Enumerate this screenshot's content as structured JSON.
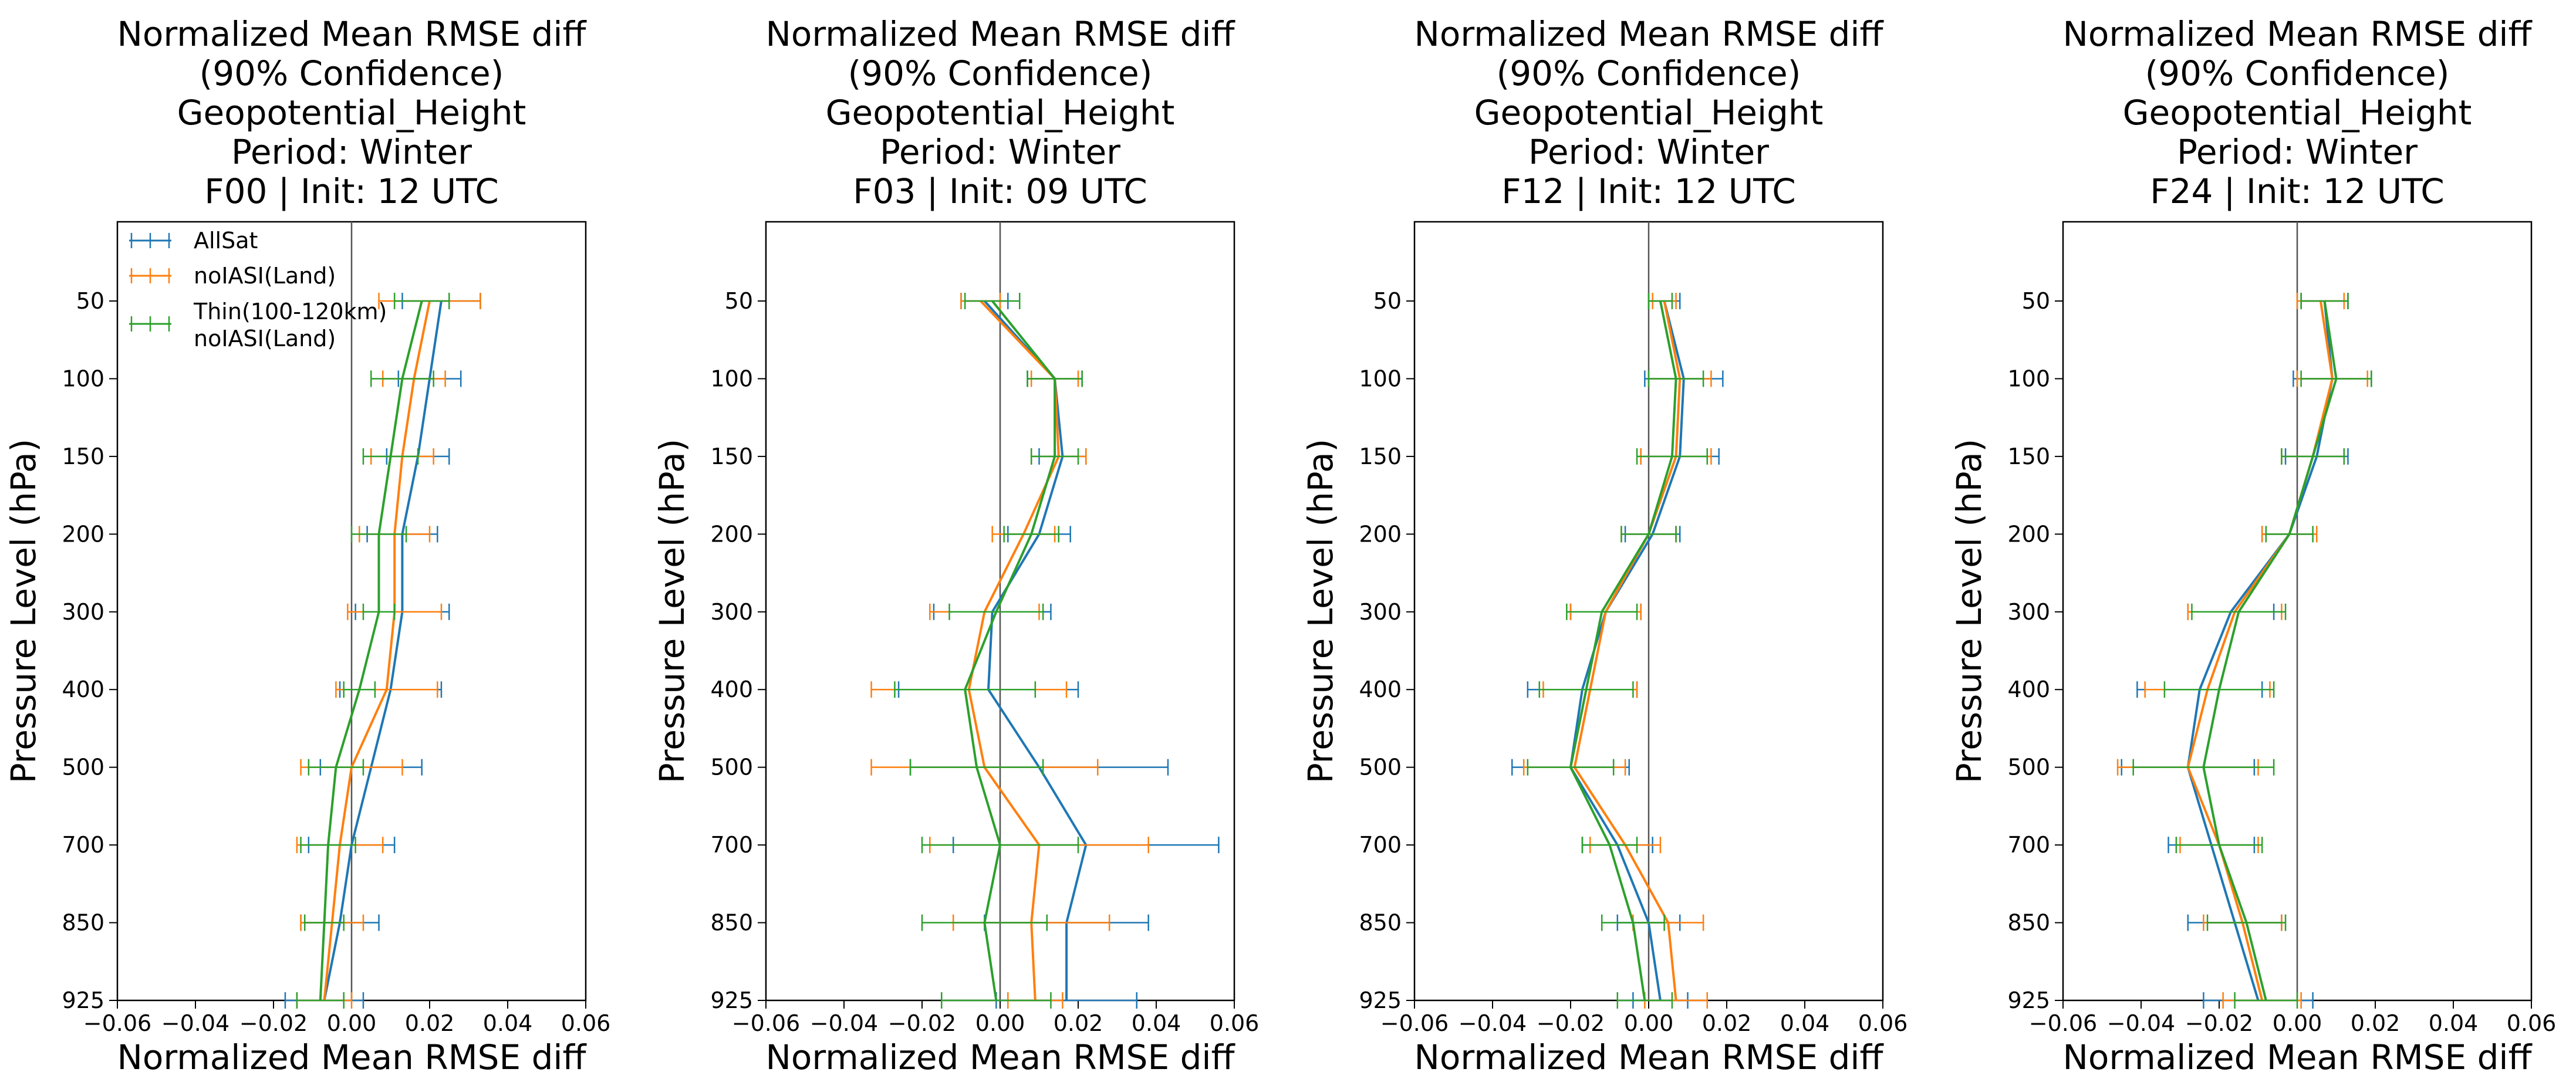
{
  "figure": {
    "background": "#ffffff"
  },
  "series_style": [
    {
      "name": "AllSat",
      "color": "#1f77b4"
    },
    {
      "name": "noIASI(Land)",
      "color": "#ff7f0e"
    },
    {
      "name": "Thin(100-120km)\nnoIASI(Land)",
      "color": "#2ca02c"
    }
  ],
  "chart_data": [
    {
      "type": "line",
      "title": [
        "Normalized Mean RMSE diff",
        "(90% Confidence)",
        "Geopotential_Height",
        "Period: Winter",
        "F00 | Init: 12 UTC"
      ],
      "xlabel": "Normalized Mean RMSE diff",
      "ylabel": "Pressure Level (hPa)",
      "xlim": [
        -0.06,
        0.06
      ],
      "xticks": [
        "−0.06",
        "−0.04",
        "−0.02",
        "0.00",
        "0.02",
        "0.04",
        "0.06"
      ],
      "xtick_values": [
        -0.06,
        -0.04,
        -0.02,
        0.0,
        0.02,
        0.04,
        0.06
      ],
      "y": [
        50,
        100,
        150,
        200,
        300,
        400,
        500,
        700,
        850,
        925
      ],
      "yticks": [
        "50",
        "100",
        "150",
        "200",
        "300",
        "400",
        "500",
        "700",
        "850",
        "925"
      ],
      "legend": "upper-left",
      "series": [
        {
          "name": "AllSat",
          "values": [
            0.023,
            0.02,
            0.017,
            0.013,
            0.013,
            0.01,
            0.005,
            0.0,
            -0.003,
            -0.007
          ],
          "err": [
            0.01,
            0.008,
            0.008,
            0.009,
            0.012,
            0.013,
            0.013,
            0.011,
            0.01,
            0.01
          ]
        },
        {
          "name": "noIASI(Land)",
          "values": [
            0.02,
            0.016,
            0.013,
            0.011,
            0.011,
            0.009,
            0.0,
            -0.003,
            -0.005,
            -0.007
          ],
          "err": [
            0.013,
            0.008,
            0.008,
            0.009,
            0.012,
            0.013,
            0.013,
            0.011,
            0.008,
            0.007
          ]
        },
        {
          "name": "Thin(100-120km)\nnoIASI(Land)",
          "values": [
            0.018,
            0.013,
            0.01,
            0.007,
            0.007,
            0.002,
            -0.004,
            -0.006,
            -0.007,
            -0.008
          ],
          "err": [
            0.007,
            0.008,
            0.007,
            0.007,
            0.004,
            0.004,
            0.007,
            0.007,
            0.005,
            0.006
          ]
        }
      ]
    },
    {
      "type": "line",
      "title": [
        "Normalized Mean RMSE diff",
        "(90% Confidence)",
        "Geopotential_Height",
        "Period: Winter",
        "F03 | Init: 09 UTC"
      ],
      "xlabel": "Normalized Mean RMSE diff",
      "ylabel": "Pressure Level (hPa)",
      "xlim": [
        -0.06,
        0.06
      ],
      "xticks": [
        "−0.06",
        "−0.04",
        "−0.02",
        "0.00",
        "0.02",
        "0.04",
        "0.06"
      ],
      "xtick_values": [
        -0.06,
        -0.04,
        -0.02,
        0.0,
        0.02,
        0.04,
        0.06
      ],
      "y": [
        50,
        100,
        150,
        200,
        300,
        400,
        500,
        700,
        850,
        925
      ],
      "yticks": [
        "50",
        "100",
        "150",
        "200",
        "300",
        "400",
        "500",
        "700",
        "850",
        "925"
      ],
      "series": [
        {
          "name": "AllSat",
          "values": [
            -0.004,
            0.014,
            0.016,
            0.01,
            -0.002,
            -0.003,
            0.01,
            0.022,
            0.017,
            0.017
          ],
          "err": [
            0.006,
            0.007,
            0.006,
            0.008,
            0.015,
            0.023,
            0.033,
            0.034,
            0.021,
            0.018
          ]
        },
        {
          "name": "noIASI(Land)",
          "values": [
            -0.005,
            0.014,
            0.015,
            0.006,
            -0.004,
            -0.008,
            -0.004,
            0.01,
            0.008,
            0.009
          ],
          "err": [
            0.005,
            0.006,
            0.007,
            0.008,
            0.014,
            0.025,
            0.029,
            0.028,
            0.02,
            0.007
          ]
        },
        {
          "name": "Thin(100-120km)\nnoIASI(Land)",
          "values": [
            -0.002,
            0.014,
            0.014,
            0.008,
            -0.001,
            -0.009,
            -0.006,
            0.0,
            -0.004,
            -0.001
          ],
          "err": [
            0.007,
            0.007,
            0.006,
            0.007,
            0.012,
            0.018,
            0.017,
            0.02,
            0.016,
            0.014
          ]
        }
      ]
    },
    {
      "type": "line",
      "title": [
        "Normalized Mean RMSE diff",
        "(90% Confidence)",
        "Geopotential_Height",
        "Period: Winter",
        "F12 | Init: 12 UTC"
      ],
      "xlabel": "Normalized Mean RMSE diff",
      "ylabel": "Pressure Level (hPa)",
      "xlim": [
        -0.06,
        0.06
      ],
      "xticks": [
        "−0.06",
        "−0.04",
        "−0.02",
        "0.00",
        "0.02",
        "0.04",
        "0.06"
      ],
      "xtick_values": [
        -0.06,
        -0.04,
        -0.02,
        0.0,
        0.02,
        0.04,
        0.06
      ],
      "y": [
        50,
        100,
        150,
        200,
        300,
        400,
        500,
        700,
        850,
        925
      ],
      "yticks": [
        "50",
        "100",
        "150",
        "200",
        "300",
        "400",
        "500",
        "700",
        "850",
        "925"
      ],
      "series": [
        {
          "name": "AllSat",
          "values": [
            0.004,
            0.009,
            0.008,
            0.001,
            -0.011,
            -0.017,
            -0.02,
            -0.008,
            0.0,
            0.003
          ],
          "err": [
            0.004,
            0.01,
            0.01,
            0.007,
            0.009,
            0.014,
            0.015,
            0.009,
            0.008,
            0.007
          ]
        },
        {
          "name": "noIASI(Land)",
          "values": [
            0.004,
            0.008,
            0.007,
            0.0,
            -0.011,
            -0.015,
            -0.019,
            -0.006,
            0.005,
            0.007
          ],
          "err": [
            0.003,
            0.008,
            0.009,
            0.007,
            0.009,
            0.012,
            0.013,
            0.009,
            0.009,
            0.008
          ]
        },
        {
          "name": "Thin(100-120km)\nnoIASI(Land)",
          "values": [
            0.003,
            0.007,
            0.006,
            0.0,
            -0.012,
            -0.016,
            -0.02,
            -0.01,
            -0.004,
            -0.001
          ],
          "err": [
            0.003,
            0.007,
            0.009,
            0.007,
            0.009,
            0.012,
            0.011,
            0.007,
            0.008,
            0.007
          ]
        }
      ]
    },
    {
      "type": "line",
      "title": [
        "Normalized Mean RMSE diff",
        "(90% Confidence)",
        "Geopotential_Height",
        "Period: Winter",
        "F24 | Init: 12 UTC"
      ],
      "xlabel": "Normalized Mean RMSE diff",
      "ylabel": "Pressure Level (hPa)",
      "xlim": [
        -0.06,
        0.06
      ],
      "xticks": [
        "−0.06",
        "−0.04",
        "−0.02",
        "0.00",
        "0.02",
        "0.04",
        "0.06"
      ],
      "xtick_values": [
        -0.06,
        -0.04,
        -0.02,
        0.0,
        0.02,
        0.04,
        0.06
      ],
      "y": [
        50,
        100,
        150,
        200,
        300,
        400,
        500,
        700,
        850,
        925
      ],
      "yticks": [
        "50",
        "100",
        "150",
        "200",
        "300",
        "400",
        "500",
        "700",
        "850",
        "925"
      ],
      "series": [
        {
          "name": "AllSat",
          "values": [
            0.007,
            0.009,
            0.005,
            -0.002,
            -0.017,
            -0.025,
            -0.028,
            -0.022,
            -0.016,
            -0.01
          ],
          "err": [
            0.006,
            0.01,
            0.008,
            0.007,
            0.011,
            0.016,
            0.017,
            0.011,
            0.012,
            0.014
          ]
        },
        {
          "name": "noIASI(Land)",
          "values": [
            0.006,
            0.009,
            0.004,
            -0.002,
            -0.016,
            -0.023,
            -0.028,
            -0.02,
            -0.014,
            -0.009
          ],
          "err": [
            0.006,
            0.009,
            0.008,
            0.007,
            0.012,
            0.016,
            0.018,
            0.01,
            0.01,
            0.01
          ]
        },
        {
          "name": "Thin(100-120km)\nnoIASI(Land)",
          "values": [
            0.007,
            0.01,
            0.004,
            -0.002,
            -0.015,
            -0.02,
            -0.024,
            -0.02,
            -0.013,
            -0.008
          ],
          "err": [
            0.006,
            0.009,
            0.008,
            0.006,
            0.012,
            0.014,
            0.018,
            0.011,
            0.01,
            0.008
          ]
        }
      ]
    }
  ]
}
